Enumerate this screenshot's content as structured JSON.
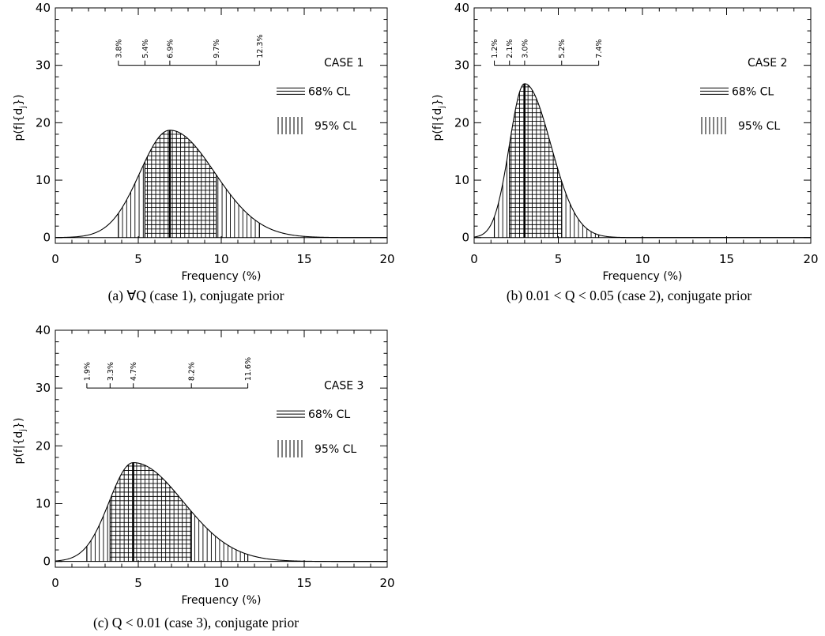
{
  "chart_data": [
    {
      "type": "area",
      "xlabel": "Frequency (%)",
      "ylabel": "p(f|{d_j})",
      "ylabel_main": "p(f|{d",
      "ylabel_sub": "j",
      "ylabel_end": "})",
      "xlim": [
        0,
        20
      ],
      "ylim": [
        -1,
        40
      ],
      "x_ticks": [
        "0",
        "5",
        "10",
        "15",
        "20"
      ],
      "y_ticks": [
        "0",
        "10",
        "20",
        "30",
        "40"
      ],
      "case_label": "CASE 1",
      "legend": [
        {
          "pattern": "horizontal",
          "label": "68% CL"
        },
        {
          "pattern": "vertical",
          "label": "95% CL"
        }
      ],
      "curve": {
        "peak_x": 6.9,
        "peak_y": 18.7,
        "sigma_left": 1.8,
        "sigma_right": 2.7
      },
      "ci95": [
        3.8,
        12.3
      ],
      "ci68": [
        5.4,
        9.7
      ],
      "mode": 6.9,
      "bracket_y": 30,
      "bracket_points": [
        3.8,
        5.4,
        6.9,
        9.7,
        12.3
      ],
      "bracket_labels": [
        "3.8%",
        "5.4%",
        "6.9%",
        "9.7%",
        "12.3%"
      ],
      "caption": "(a) ∀Q (case 1), conjugate prior"
    },
    {
      "type": "area",
      "xlabel": "Frequency (%)",
      "ylabel": "p(f|{d_j})",
      "ylabel_main": "p(f|{d",
      "ylabel_sub": "j",
      "ylabel_end": "})",
      "xlim": [
        0,
        20
      ],
      "ylim": [
        -1,
        40
      ],
      "x_ticks": [
        "0",
        "5",
        "10",
        "15",
        "20"
      ],
      "y_ticks": [
        "0",
        "10",
        "20",
        "30",
        "40"
      ],
      "case_label": "CASE 2",
      "legend": [
        {
          "pattern": "horizontal",
          "label": "68% CL"
        },
        {
          "pattern": "vertical",
          "label": "95% CL"
        }
      ],
      "curve": {
        "peak_x": 3.0,
        "peak_y": 26.8,
        "sigma_left": 0.9,
        "sigma_right": 1.55
      },
      "ci95": [
        1.2,
        7.4
      ],
      "ci68": [
        2.1,
        5.2
      ],
      "mode": 3.0,
      "bracket_y": 30,
      "bracket_points": [
        1.2,
        2.1,
        3.0,
        5.2,
        7.4
      ],
      "bracket_labels": [
        "1.2%",
        "2.1%",
        "3.0%",
        "5.2%",
        "7.4%"
      ],
      "caption": "(b) 0.01 < Q < 0.05 (case 2), conjugate prior"
    },
    {
      "type": "area",
      "xlabel": "Frequency (%)",
      "ylabel": "p(f|{d_j})",
      "ylabel_main": "p(f|{d",
      "ylabel_sub": "j",
      "ylabel_end": "})",
      "xlim": [
        0,
        20
      ],
      "ylim": [
        -1,
        40
      ],
      "x_ticks": [
        "0",
        "5",
        "10",
        "15",
        "20"
      ],
      "y_ticks": [
        "0",
        "10",
        "20",
        "30",
        "40"
      ],
      "case_label": "CASE 3",
      "legend": [
        {
          "pattern": "horizontal",
          "label": "68% CL"
        },
        {
          "pattern": "vertical",
          "label": "95% CL"
        }
      ],
      "curve": {
        "peak_x": 4.7,
        "peak_y": 17.1,
        "sigma_left": 1.45,
        "sigma_right": 3.0
      },
      "ci95": [
        1.9,
        11.6
      ],
      "ci68": [
        3.3,
        8.2
      ],
      "mode": 4.7,
      "bracket_y": 30,
      "bracket_points": [
        1.9,
        3.3,
        4.7,
        8.2,
        11.6
      ],
      "bracket_labels": [
        "1.9%",
        "3.3%",
        "4.7%",
        "8.2%",
        "11.6%"
      ],
      "caption": "(c) Q < 0.01 (case 3), conjugate prior"
    }
  ]
}
